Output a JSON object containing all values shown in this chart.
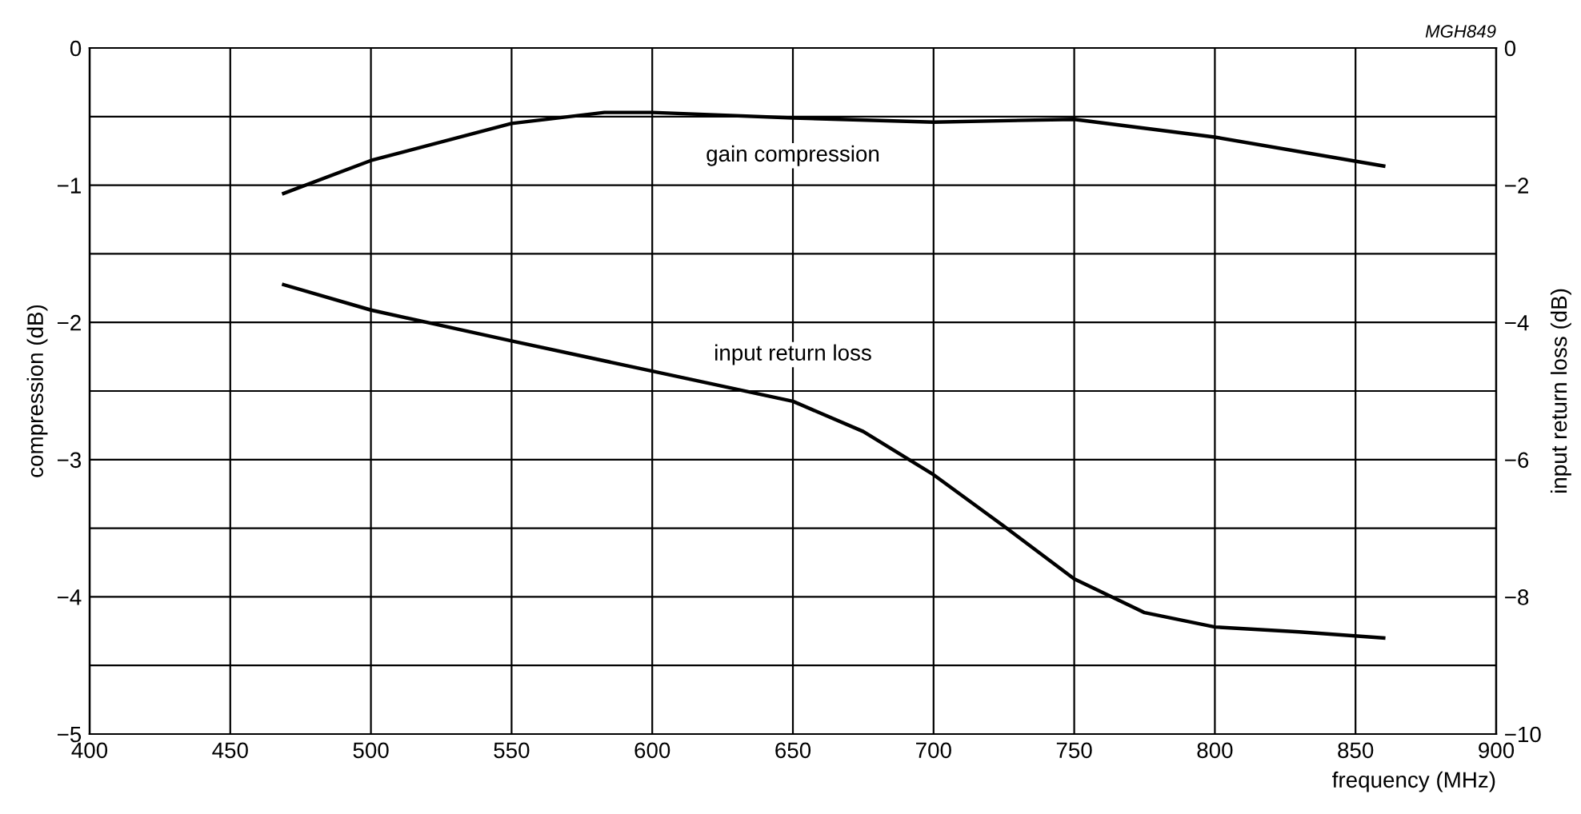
{
  "chart_data": {
    "type": "line",
    "xlabel": "frequency (MHz)",
    "ylabel": "compression (dB)",
    "y2label": "input return loss (dB)",
    "xlim": [
      400,
      900
    ],
    "xticks": [
      400,
      450,
      500,
      550,
      600,
      650,
      700,
      750,
      800,
      850,
      900
    ],
    "ylim": [
      -5,
      0
    ],
    "yticks": [
      0,
      {
        "value": -0.5,
        "label": null
      },
      -1,
      {
        "value": -1.5,
        "label": null
      },
      -2,
      {
        "value": -2.5,
        "label": null
      },
      -3,
      {
        "value": -3.5,
        "label": null
      },
      -4,
      {
        "value": -4.5,
        "label": null
      },
      -5
    ],
    "y2lim": [
      -10,
      0
    ],
    "y2ticks": [
      0,
      -2,
      -4,
      -6,
      -8,
      -10
    ],
    "grid": true,
    "line_style": "solid",
    "marker": "none",
    "series": [
      {
        "name": "gain compression",
        "color": "#000000",
        "x": [
          469,
          500,
          550,
          583,
          600,
          650,
          700,
          750,
          800,
          860
        ],
        "values": [
          -1.06,
          -0.82,
          -0.55,
          -0.47,
          -0.47,
          -0.51,
          -0.54,
          -0.52,
          -0.65,
          -0.86
        ]
      },
      {
        "name": "input return loss",
        "color": "#000000",
        "axis": "y2",
        "x": [
          469,
          500,
          550,
          600,
          650,
          675,
          700,
          725,
          750,
          775,
          800,
          830,
          860
        ],
        "values": [
          -3.45,
          -3.82,
          -4.27,
          -4.71,
          -5.15,
          -5.59,
          -6.22,
          -6.97,
          -7.74,
          -8.23,
          -8.44,
          -8.51,
          -8.6
        ]
      }
    ],
    "annotations": [
      "MGH849"
    ]
  }
}
